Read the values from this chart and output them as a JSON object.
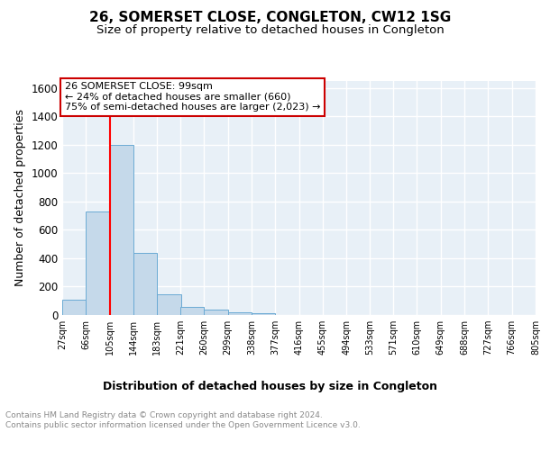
{
  "title": "26, SOMERSET CLOSE, CONGLETON, CW12 1SG",
  "subtitle": "Size of property relative to detached houses in Congleton",
  "xlabel": "Distribution of detached houses by size in Congleton",
  "ylabel": "Number of detached properties",
  "bar_color": "#c5d9ea",
  "bar_edge_color": "#6aaad4",
  "background_color": "#e8f0f7",
  "grid_color": "#ffffff",
  "bin_edges": [
    27,
    66,
    105,
    144,
    183,
    221,
    260,
    299,
    338,
    377,
    416,
    455,
    494,
    533,
    571,
    610,
    649,
    688,
    727,
    766,
    805
  ],
  "bin_labels": [
    "27sqm",
    "66sqm",
    "105sqm",
    "144sqm",
    "183sqm",
    "221sqm",
    "260sqm",
    "299sqm",
    "338sqm",
    "377sqm",
    "416sqm",
    "455sqm",
    "494sqm",
    "533sqm",
    "571sqm",
    "610sqm",
    "649sqm",
    "688sqm",
    "727sqm",
    "766sqm",
    "805sqm"
  ],
  "bar_heights": [
    110,
    730,
    1200,
    440,
    145,
    60,
    35,
    20,
    10,
    0,
    0,
    0,
    0,
    0,
    0,
    0,
    0,
    0,
    0,
    0
  ],
  "ylim": [
    0,
    1650
  ],
  "yticks": [
    0,
    200,
    400,
    600,
    800,
    1000,
    1200,
    1400,
    1600
  ],
  "red_line_x": 105,
  "annotation_text": "26 SOMERSET CLOSE: 99sqm\n← 24% of detached houses are smaller (660)\n75% of semi-detached houses are larger (2,023) →",
  "annotation_box_color": "#ffffff",
  "annotation_box_edge": "#cc0000",
  "footer_text": "Contains HM Land Registry data © Crown copyright and database right 2024.\nContains public sector information licensed under the Open Government Licence v3.0.",
  "title_fontsize": 11,
  "subtitle_fontsize": 9.5,
  "ylabel_fontsize": 9,
  "xlabel_fontsize": 9,
  "footer_fontsize": 6.5
}
